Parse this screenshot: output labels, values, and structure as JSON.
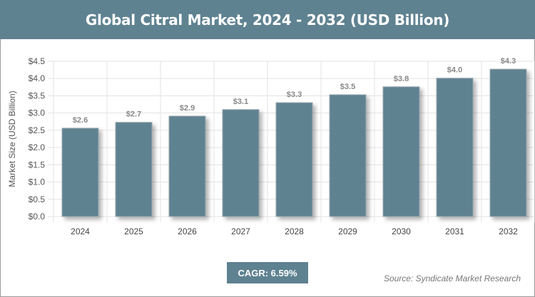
{
  "chart_data": {
    "type": "bar",
    "title": "Global Citral Market, 2024 - 2032 (USD Billion)",
    "xlabel": "",
    "ylabel": "Market Size (USD Billion)",
    "categories": [
      "2024",
      "2025",
      "2026",
      "2027",
      "2028",
      "2029",
      "2030",
      "2031",
      "2032"
    ],
    "values": [
      2.56,
      2.73,
      2.91,
      3.1,
      3.3,
      3.53,
      3.76,
      4.01,
      4.27
    ],
    "data_labels": [
      "$2.6",
      "$2.7",
      "$2.9",
      "$3.1",
      "$3.3",
      "$3.5",
      "$3.8",
      "$4.0",
      "$4.3"
    ],
    "ylim": [
      0,
      4.5
    ],
    "yticks": [
      "$0.0",
      "$0.5",
      "$1.0",
      "$1.5",
      "$2.0",
      "$2.5",
      "$3.0",
      "$3.5",
      "$4.0",
      "$4.5"
    ],
    "grid": true,
    "bar_color": "#5f8291"
  },
  "footer": {
    "cagr": "CAGR: 6.59%",
    "source": "Source: Syndicate Market Research"
  }
}
